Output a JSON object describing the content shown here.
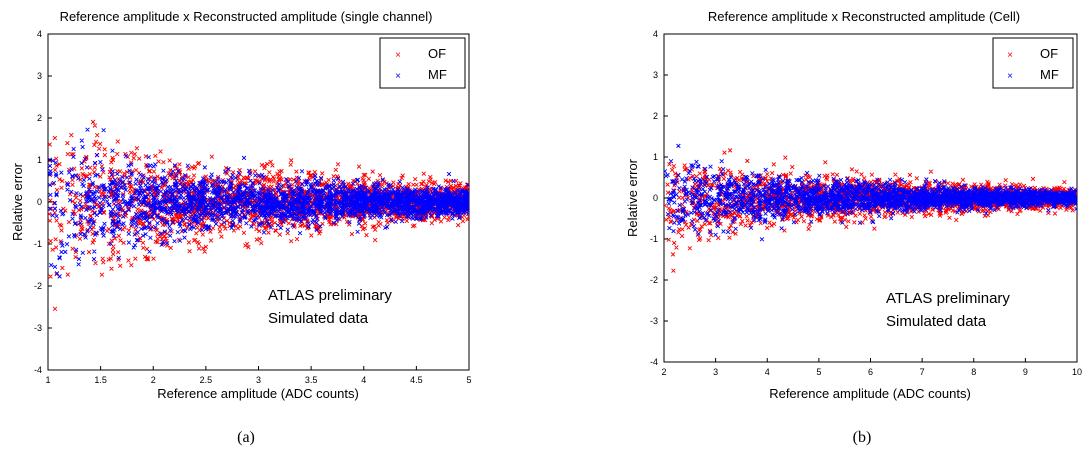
{
  "chart_data": [
    {
      "type": "scatter",
      "title": "Reference amplitude x Reconstructed amplitude (single channel)",
      "xlabel": "Reference amplitude (ADC counts)",
      "ylabel": "Relative error",
      "xlim": [
        1,
        5
      ],
      "ylim": [
        -4,
        4
      ],
      "xticks": [
        "1",
        "1.5",
        "2",
        "2.5",
        "3",
        "3.5",
        "4",
        "4.5",
        "5"
      ],
      "yticks": [
        "4",
        "3",
        "2",
        "1",
        "0",
        "-1",
        "-2",
        "-3",
        "-4"
      ],
      "grid": false,
      "legend_position": "top-right",
      "series": [
        {
          "name": "OF",
          "color": "#ff0000",
          "marker": "x",
          "spread": [
            [
              1,
              1.45
            ],
            [
              1.5,
              1.0
            ],
            [
              2,
              0.75
            ],
            [
              2.5,
              0.6
            ],
            [
              3,
              0.52
            ],
            [
              3.5,
              0.45
            ],
            [
              4,
              0.38
            ],
            [
              4.5,
              0.32
            ],
            [
              5,
              0.28
            ]
          ]
        },
        {
          "name": "MF",
          "color": "#0000ff",
          "marker": "x",
          "spread": [
            [
              1,
              1.1
            ],
            [
              1.5,
              0.78
            ],
            [
              2,
              0.58
            ],
            [
              2.5,
              0.45
            ],
            [
              3,
              0.38
            ],
            [
              3.5,
              0.33
            ],
            [
              4,
              0.28
            ],
            [
              4.5,
              0.24
            ],
            [
              5,
              0.2
            ]
          ]
        }
      ],
      "annotation": [
        "ATLAS preliminary",
        "Simulated data"
      ],
      "caption": "(a)"
    },
    {
      "type": "scatter",
      "title": "Reference amplitude x Reconstructed amplitude (Cell)",
      "xlabel": "Reference amplitude (ADC counts)",
      "ylabel": "Relative error",
      "xlim": [
        2,
        10
      ],
      "ylim": [
        -4,
        4
      ],
      "xticks": [
        "2",
        "3",
        "4",
        "5",
        "6",
        "7",
        "8",
        "9",
        "10"
      ],
      "yticks": [
        "4",
        "3",
        "2",
        "1",
        "0",
        "-1",
        "-2",
        "-3",
        "-4"
      ],
      "grid": false,
      "legend_position": "top-right",
      "series": [
        {
          "name": "OF",
          "color": "#ff0000",
          "marker": "x",
          "spread": [
            [
              2,
              0.9
            ],
            [
              3,
              0.6
            ],
            [
              4,
              0.45
            ],
            [
              5,
              0.38
            ],
            [
              6,
              0.32
            ],
            [
              7,
              0.26
            ],
            [
              8,
              0.22
            ],
            [
              9,
              0.18
            ],
            [
              10,
              0.15
            ]
          ]
        },
        {
          "name": "MF",
          "color": "#0000ff",
          "marker": "x",
          "spread": [
            [
              2,
              0.7
            ],
            [
              3,
              0.48
            ],
            [
              4,
              0.36
            ],
            [
              5,
              0.3
            ],
            [
              6,
              0.25
            ],
            [
              7,
              0.2
            ],
            [
              8,
              0.17
            ],
            [
              9,
              0.14
            ],
            [
              10,
              0.11
            ]
          ]
        }
      ],
      "annotation": [
        "ATLAS preliminary",
        "Simulated data"
      ],
      "caption": "(b)"
    }
  ]
}
